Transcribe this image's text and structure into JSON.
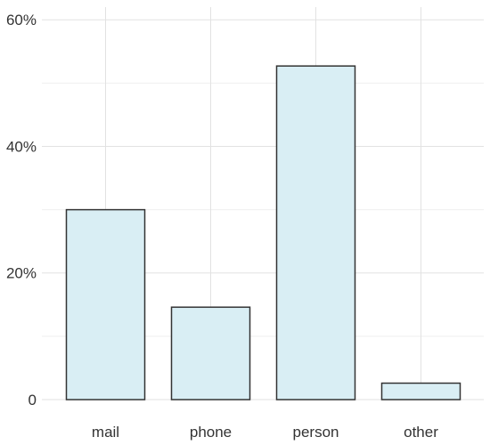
{
  "chart_data": {
    "type": "bar",
    "categories": [
      "mail",
      "phone",
      "person",
      "other"
    ],
    "values": [
      30,
      14.6,
      52.7,
      2.6
    ],
    "ylim": [
      0,
      62
    ],
    "y_ticks": [
      0,
      20,
      40,
      60
    ],
    "y_tick_labels": [
      "0",
      "20%",
      "40%",
      "60%"
    ],
    "y_minor_ticks": [
      10,
      30,
      50
    ],
    "grid": true,
    "legend": "none",
    "title": "",
    "xlabel": "",
    "ylabel": "",
    "colors": {
      "bar_fill": "#d9eef4",
      "bar_stroke": "#333333",
      "grid": "#e2e2e2"
    }
  }
}
